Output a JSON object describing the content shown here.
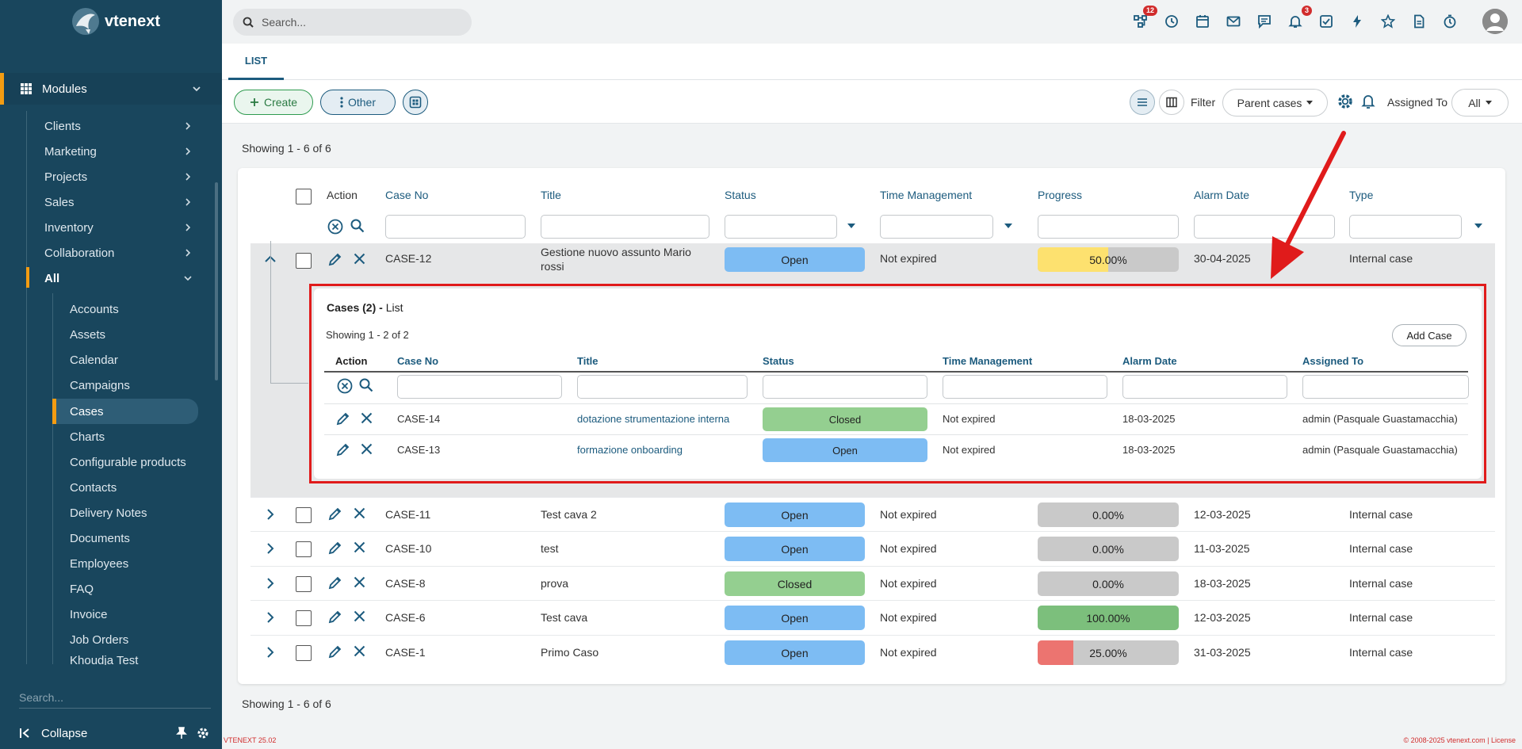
{
  "app": {
    "logo_text": "vtenext",
    "version": "VTENEXT 25.02",
    "copyright": "© 2008-2025 vtenext.com | License"
  },
  "topbar": {
    "search_placeholder": "Search...",
    "badges": {
      "process": "12",
      "notifications": "3"
    }
  },
  "sidebar": {
    "modules_label": "Modules",
    "items": [
      {
        "label": "Clients"
      },
      {
        "label": "Marketing"
      },
      {
        "label": "Projects"
      },
      {
        "label": "Sales"
      },
      {
        "label": "Inventory"
      },
      {
        "label": "Collaboration"
      },
      {
        "label": "All"
      }
    ],
    "all_items": [
      "Accounts",
      "Assets",
      "Calendar",
      "Campaigns",
      "Cases",
      "Charts",
      "Configurable products",
      "Contacts",
      "Delivery Notes",
      "Documents",
      "Employees",
      "FAQ",
      "Invoice",
      "Job Orders",
      "Khoudja Test"
    ],
    "active_item": "Cases",
    "search_placeholder": "Search...",
    "collapse_label": "Collapse"
  },
  "tabs": {
    "list": "LIST"
  },
  "toolbar": {
    "create_label": "Create",
    "other_label": "Other",
    "filter_label": "Filter",
    "filter_value": "Parent cases",
    "assigned_label": "Assigned To",
    "assigned_value": "All"
  },
  "list": {
    "showing_top": "Showing 1 - 6 of 6",
    "showing_bottom": "Showing 1 - 6 of 6",
    "columns": {
      "action": "Action",
      "case_no": "Case No",
      "title": "Title",
      "status": "Status",
      "time_mgmt": "Time Management",
      "progress": "Progress",
      "alarm_date": "Alarm Date",
      "type": "Type"
    },
    "rows": [
      {
        "case_no": "CASE-12",
        "title": "Gestione nuovo assunto Mario rossi",
        "status": "Open",
        "time_mgmt": "Not expired",
        "progress": 50,
        "progress_label": "50.00%",
        "progress_color": "#fde16f",
        "alarm_date": "30-04-2025",
        "type": "Internal case"
      },
      {
        "case_no": "CASE-11",
        "title": "Test cava 2",
        "status": "Open",
        "time_mgmt": "Not expired",
        "progress": 0,
        "progress_label": "0.00%",
        "progress_color": "#c9c9c9",
        "alarm_date": "12-03-2025",
        "type": "Internal case"
      },
      {
        "case_no": "CASE-10",
        "title": "test",
        "status": "Open",
        "time_mgmt": "Not expired",
        "progress": 0,
        "progress_label": "0.00%",
        "progress_color": "#c9c9c9",
        "alarm_date": "11-03-2025",
        "type": "Internal case"
      },
      {
        "case_no": "CASE-8",
        "title": "prova",
        "status": "Closed",
        "time_mgmt": "Not expired",
        "progress": 0,
        "progress_label": "0.00%",
        "progress_color": "#c9c9c9",
        "alarm_date": "18-03-2025",
        "type": "Internal case"
      },
      {
        "case_no": "CASE-6",
        "title": "Test cava",
        "status": "Open",
        "time_mgmt": "Not expired",
        "progress": 100,
        "progress_label": "100.00%",
        "progress_color": "#7cbf7c",
        "alarm_date": "12-03-2025",
        "type": "Internal case"
      },
      {
        "case_no": "CASE-1",
        "title": "Primo Caso",
        "status": "Open",
        "time_mgmt": "Not expired",
        "progress": 25,
        "progress_label": "25.00%",
        "progress_color": "#ec7470",
        "alarm_date": "31-03-2025",
        "type": "Internal case"
      }
    ]
  },
  "subpanel": {
    "title_bold": "Cases (2) -",
    "title_rest": "List",
    "showing": "Showing 1 - 2 of 2",
    "add_label": "Add Case",
    "columns": {
      "action": "Action",
      "case_no": "Case No",
      "title": "Title",
      "status": "Status",
      "time_mgmt": "Time Management",
      "alarm_date": "Alarm Date",
      "assigned_to": "Assigned To"
    },
    "rows": [
      {
        "case_no": "CASE-14",
        "title": "dotazione strumentazione interna",
        "status": "Closed",
        "time_mgmt": "Not expired",
        "alarm_date": "18-03-2025",
        "assigned_to": "admin (Pasquale Guastamacchia)"
      },
      {
        "case_no": "CASE-13",
        "title": "formazione onboarding",
        "status": "Open",
        "time_mgmt": "Not expired",
        "alarm_date": "18-03-2025",
        "assigned_to": "admin (Pasquale Guastamacchia)"
      }
    ]
  },
  "colors": {
    "sidebar_bg": "#19465d",
    "accent": "#f39c12",
    "link": "#1c5b7e",
    "status_open": "#7dbcf3",
    "status_closed": "#94cf90",
    "annotation_red": "#e01b1b"
  }
}
